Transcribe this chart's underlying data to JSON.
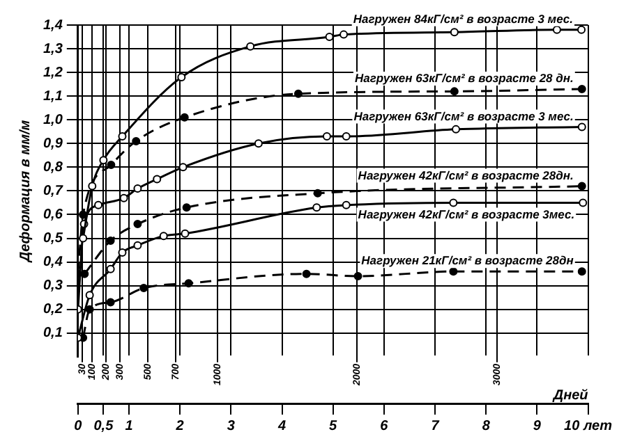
{
  "chart_data": {
    "type": "line",
    "ylabel": "Деформация в мм/м",
    "x2label": "Дней",
    "xlim": [
      0,
      10
    ],
    "xticks": [
      0,
      {
        "value": 0.5,
        "label": "0,5"
      },
      1,
      2,
      3,
      4,
      5,
      6,
      7,
      8,
      9,
      {
        "value": 10,
        "label": "10 лет"
      }
    ],
    "x2lim": [
      0,
      3652.5
    ],
    "x2ticks": [
      30,
      100,
      200,
      300,
      500,
      700,
      1000,
      2000,
      3000
    ],
    "ylim": [
      0,
      1.4
    ],
    "yticks": [
      {
        "value": 0.1,
        "label": "0,1"
      },
      {
        "value": 0.2,
        "label": "0,2"
      },
      {
        "value": 0.3,
        "label": "0,3"
      },
      {
        "value": 0.4,
        "label": "0,4"
      },
      {
        "value": 0.5,
        "label": "0,5"
      },
      {
        "value": 0.6,
        "label": "0,6"
      },
      {
        "value": 0.7,
        "label": "0,7"
      },
      {
        "value": 0.8,
        "label": "0,8"
      },
      {
        "value": 0.9,
        "label": "0,9"
      },
      {
        "value": 1.0,
        "label": "1,0"
      },
      {
        "value": 1.1,
        "label": "1,1"
      },
      {
        "value": 1.2,
        "label": "1,2"
      },
      {
        "value": 1.3,
        "label": "1,3"
      },
      {
        "value": 1.4,
        "label": "1,4"
      }
    ],
    "grid": true,
    "legend": false,
    "marker": "circle",
    "series": [
      {
        "name": "Нагружен 84кГ/см² в возрасте 3 мес.",
        "color": "#000000",
        "line_style": "solid",
        "x": [
          0.1,
          0.28,
          0.5,
          0.87,
          2.03,
          3.38,
          4.93,
          5.21,
          7.38,
          9.39,
          9.87
        ],
        "values": [
          0.5,
          0.72,
          0.83,
          0.93,
          1.18,
          1.31,
          1.35,
          1.36,
          1.37,
          1.38,
          1.38
        ]
      },
      {
        "name": "Нагружен 63кГ/см² в возрасте 28 дн.",
        "color": "#000000",
        "line_style": "dashed",
        "x": [
          0,
          0.1,
          0.65,
          1.14,
          2.09,
          4.32,
          7.38,
          9.88
        ],
        "values": [
          0.35,
          0.6,
          0.81,
          0.91,
          1.01,
          1.11,
          1.12,
          1.13
        ]
      },
      {
        "name": "Нагружен 63кГ/см² в возрасте 3 мес.",
        "color": "#000000",
        "line_style": "solid",
        "x": [
          0,
          0.12,
          0.4,
          0.9,
          1.17,
          1.55,
          2.06,
          3.54,
          4.88,
          5.26,
          7.41,
          9.88
        ],
        "values": [
          0.2,
          0.56,
          0.64,
          0.67,
          0.71,
          0.75,
          0.8,
          0.9,
          0.93,
          0.93,
          0.96,
          0.97
        ]
      },
      {
        "name": "Нагружен 42кГ/см² в возрасте 28дн.",
        "color": "#000000",
        "line_style": "dashed",
        "x": [
          0.13,
          0.64,
          1.17,
          2.13,
          4.7,
          9.88
        ],
        "values": [
          0.35,
          0.49,
          0.56,
          0.63,
          0.69,
          0.72
        ]
      },
      {
        "name": "Нагружен 42кГ/см² в возрасте 3мес.",
        "color": "#000000",
        "line_style": "solid",
        "x": [
          0,
          0.23,
          0.64,
          0.87,
          1.17,
          1.68,
          2.1,
          4.68,
          5.26,
          7.36,
          9.9
        ],
        "values": [
          0.08,
          0.26,
          0.37,
          0.44,
          0.47,
          0.51,
          0.52,
          0.63,
          0.64,
          0.65,
          0.65
        ]
      },
      {
        "name": "Нагружен 21кГ/см² в возрасте 28дн",
        "color": "#000000",
        "line_style": "dashed",
        "x": [
          0.1,
          0.23,
          0.64,
          1.29,
          2.17,
          4.48,
          5.49,
          7.36,
          9.88
        ],
        "values": [
          0.08,
          0.2,
          0.23,
          0.29,
          0.31,
          0.35,
          0.34,
          0.36,
          0.36
        ]
      }
    ]
  }
}
